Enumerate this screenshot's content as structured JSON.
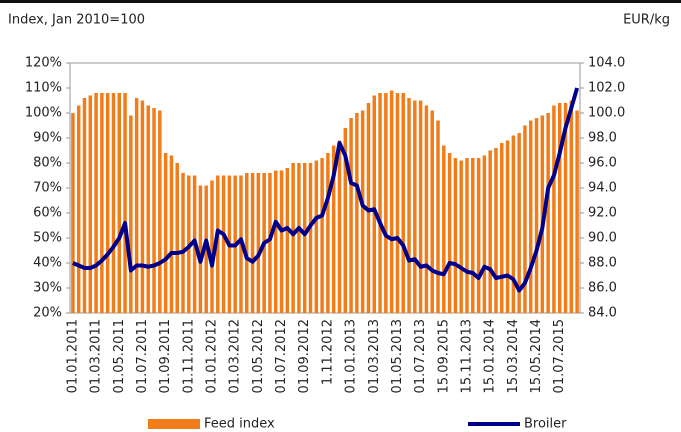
{
  "chart_data": {
    "type": "combo",
    "y_label": "Index, Jan 2010=100",
    "y2_label": "EUR/kg",
    "categories": [
      "01.01.2011",
      null,
      null,
      null,
      "01.03.2011",
      null,
      null,
      null,
      "01.05.2011",
      null,
      null,
      null,
      "01.07.2011",
      null,
      null,
      null,
      "01.09.2011",
      null,
      null,
      null,
      "01.11.2011",
      null,
      null,
      null,
      "01.01.2012",
      null,
      null,
      null,
      "01.03.2012",
      null,
      null,
      null,
      "01.05.2012",
      null,
      null,
      null,
      "01.07.2012",
      null,
      null,
      null,
      "01.09.2012",
      null,
      null,
      null,
      "1.11.2012",
      null,
      null,
      null,
      "01.01.2013",
      null,
      null,
      null,
      "01.03.2013",
      null,
      null,
      null,
      "01.05.2013",
      null,
      null,
      null,
      "01.07.2013",
      null,
      null,
      null,
      "15.09.2015",
      null,
      null,
      null,
      "15.11.2013",
      null,
      null,
      null,
      "15.01.2014",
      null,
      null,
      null,
      "15.03.2014",
      null,
      null,
      null,
      "15.05.2014",
      null,
      null,
      null,
      "01.07.2015",
      null,
      null,
      null
    ],
    "series": [
      {
        "name": "Feed index",
        "type": "bar",
        "color": "#f07d1a",
        "values": [
          100,
          103,
          106,
          107,
          108,
          108,
          108,
          108,
          108,
          108,
          99,
          106,
          105,
          103,
          102,
          101,
          84,
          83,
          80,
          76,
          75,
          75,
          71,
          71,
          73,
          75,
          75,
          75,
          75,
          75,
          76,
          76,
          76,
          76,
          76,
          77,
          77,
          78,
          80,
          80,
          80,
          80,
          81,
          82,
          84,
          87,
          89,
          94,
          98,
          100,
          101,
          104,
          107,
          108,
          108,
          109,
          108,
          108,
          106,
          105,
          105,
          103,
          101,
          97,
          87,
          84,
          82,
          81,
          82,
          82,
          82,
          83,
          85,
          86,
          88,
          89,
          91,
          92,
          95,
          97,
          98,
          99,
          100,
          103,
          104,
          104,
          105,
          101
        ]
      },
      {
        "name": "Broiler",
        "type": "line",
        "axis": "y2",
        "color": "#00008b",
        "values": [
          88.0,
          87.8,
          87.6,
          87.6,
          87.8,
          88.2,
          88.7,
          89.3,
          90.0,
          91.2,
          87.4,
          87.8,
          87.8,
          87.7,
          87.8,
          88.0,
          88.3,
          88.8,
          88.8,
          88.9,
          89.3,
          89.8,
          88.1,
          89.8,
          87.8,
          90.6,
          90.3,
          89.4,
          89.4,
          89.9,
          88.4,
          88.1,
          88.6,
          89.6,
          89.9,
          91.3,
          90.6,
          90.8,
          90.3,
          90.8,
          90.3,
          91.0,
          91.6,
          91.8,
          93.2,
          95.0,
          97.6,
          96.6,
          94.4,
          94.2,
          92.6,
          92.2,
          92.3,
          91.2,
          90.2,
          89.9,
          90.0,
          89.4,
          88.2,
          88.3,
          87.7,
          87.8,
          87.4,
          87.2,
          87.1,
          88.0,
          87.9,
          87.6,
          87.3,
          87.2,
          86.8,
          87.7,
          87.5,
          86.8,
          86.9,
          87.0,
          86.7,
          85.8,
          86.4,
          87.6,
          89.0,
          90.8,
          94.0,
          95.0,
          96.8,
          98.8,
          100.4,
          102.0
        ]
      }
    ],
    "ylim": [
      20,
      120
    ],
    "yticks": [
      {
        "value": 20,
        "label": "20%"
      },
      {
        "value": 30,
        "label": "30%"
      },
      {
        "value": 40,
        "label": "40%"
      },
      {
        "value": 50,
        "label": "50%"
      },
      {
        "value": 60,
        "label": "60%"
      },
      {
        "value": 70,
        "label": "70%"
      },
      {
        "value": 80,
        "label": "80%"
      },
      {
        "value": 90,
        "label": "90%"
      },
      {
        "value": 100,
        "label": "100%"
      },
      {
        "value": 110,
        "label": "110%"
      },
      {
        "value": 120,
        "label": "120%"
      }
    ],
    "y2lim": [
      84,
      104
    ],
    "y2ticks": [
      {
        "value": 84,
        "label": "84.0"
      },
      {
        "value": 86,
        "label": "86.0"
      },
      {
        "value": 88,
        "label": "88.0"
      },
      {
        "value": 90,
        "label": "90.0"
      },
      {
        "value": 92,
        "label": "92.0"
      },
      {
        "value": 94,
        "label": "94.0"
      },
      {
        "value": 96,
        "label": "96.0"
      },
      {
        "value": 98,
        "label": "98.0"
      },
      {
        "value": 100,
        "label": "100.0"
      },
      {
        "value": 102,
        "label": "102.0"
      },
      {
        "value": 104,
        "label": "104.0"
      }
    ]
  }
}
